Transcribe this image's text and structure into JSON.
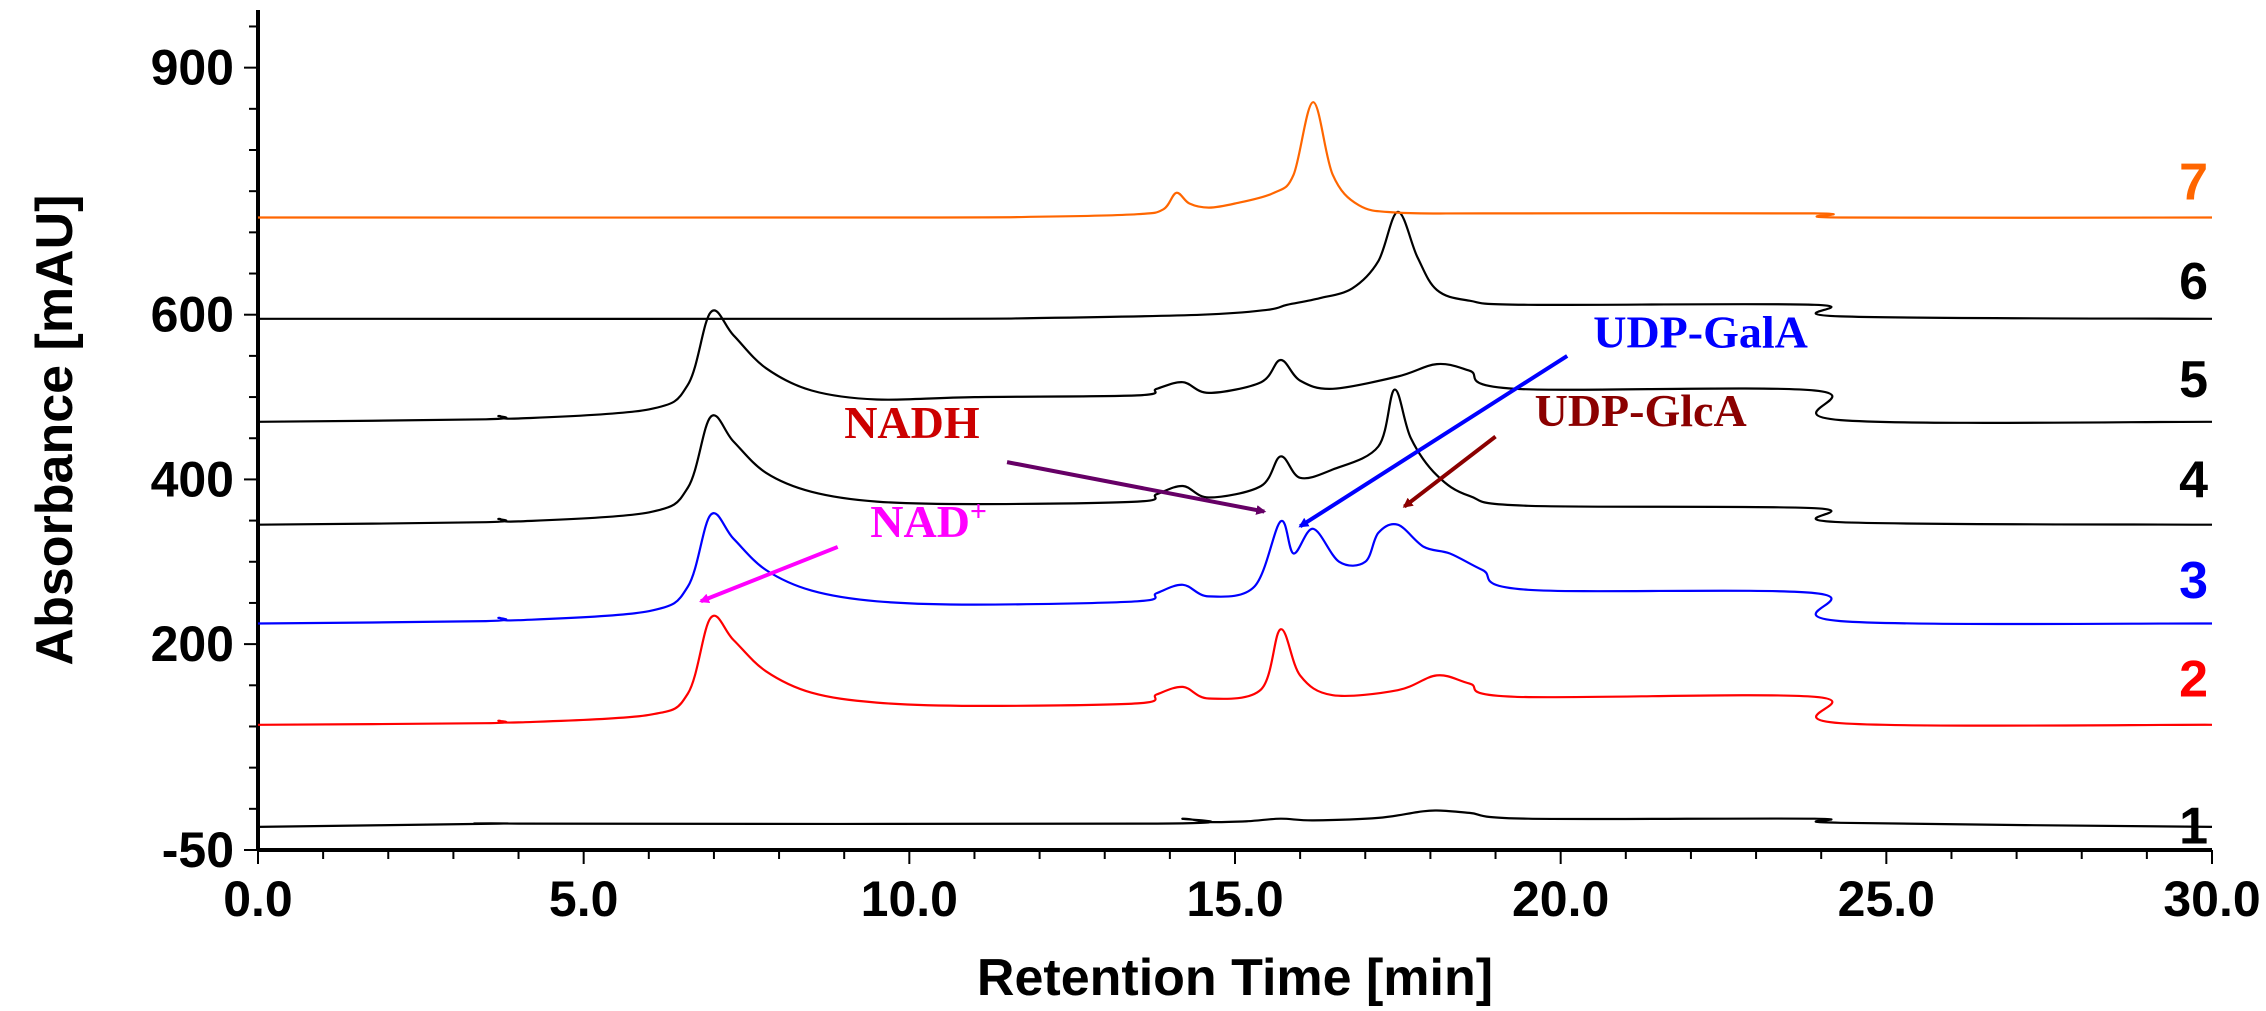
{
  "chart_data": {
    "type": "line",
    "title": "",
    "xlabel": "Retention Time [min]",
    "ylabel": "Absorbance [mAU]",
    "xlim": [
      0,
      30
    ],
    "ylim": [
      -50,
      970
    ],
    "x_ticks": [
      {
        "value": 0,
        "label": "0.0"
      },
      {
        "value": 5,
        "label": "5.0"
      },
      {
        "value": 10,
        "label": "10.0"
      },
      {
        "value": 15,
        "label": "15.0"
      },
      {
        "value": 20,
        "label": "20.0"
      },
      {
        "value": 25,
        "label": "25.0"
      },
      {
        "value": 30,
        "label": "30.0"
      }
    ],
    "y_ticks": [
      {
        "value": -50,
        "label": "-50"
      },
      {
        "value": 200,
        "label": "200"
      },
      {
        "value": 400,
        "label": "400"
      },
      {
        "value": 600,
        "label": "600"
      },
      {
        "value": 900,
        "label": "900"
      }
    ],
    "series": [
      {
        "name": "1",
        "color": "#000000",
        "x": [
          0,
          3.7,
          4,
          13.8,
          14.2,
          14.6,
          15.2,
          15.7,
          16.2,
          17.2,
          17.8,
          18.1,
          18.6,
          19.5,
          23.9,
          24.3,
          30
        ],
        "y": [
          -22,
          -18,
          -18,
          -18,
          -12,
          -16,
          -15,
          -12,
          -14,
          -11,
          -4,
          -2,
          -5,
          -12,
          -12,
          -17,
          -22
        ]
      },
      {
        "name": "2",
        "color": "#ff0000",
        "x": [
          0,
          3.5,
          3.7,
          4,
          6,
          6.6,
          6.95,
          7.3,
          7.8,
          8.5,
          9.5,
          11,
          13.5,
          13.8,
          14.2,
          14.6,
          15.4,
          15.7,
          16.0,
          16.5,
          17.5,
          18.1,
          18.6,
          19.3,
          23.9,
          24.3,
          30
        ],
        "y": [
          102,
          104,
          107,
          105,
          114,
          140,
          232,
          205,
          167,
          141,
          129,
          125,
          128,
          139,
          148,
          134,
          145,
          218,
          162,
          138,
          144,
          162,
          152,
          136,
          136,
          104,
          102
        ]
      },
      {
        "name": "3",
        "color": "#0000ff",
        "x": [
          0,
          3.5,
          3.7,
          4,
          6,
          6.6,
          6.95,
          7.3,
          7.8,
          8.5,
          9.5,
          11,
          13.5,
          13.8,
          14.2,
          14.6,
          15.3,
          15.7,
          15.9,
          16.2,
          16.6,
          17.0,
          17.2,
          17.5,
          17.9,
          18.3,
          18.8,
          19.5,
          23.9,
          24.3,
          30
        ],
        "y": [
          225,
          228,
          232,
          229,
          240,
          270,
          357,
          328,
          290,
          265,
          252,
          248,
          252,
          262,
          272,
          258,
          270,
          349,
          310,
          340,
          300,
          300,
          335,
          345,
          318,
          310,
          290,
          266,
          262,
          228,
          225
        ]
      },
      {
        "name": "4",
        "color": "#000000",
        "x": [
          0,
          3.5,
          3.7,
          4,
          6,
          6.6,
          6.95,
          7.3,
          7.8,
          8.5,
          9.5,
          11,
          13.5,
          13.8,
          14.2,
          14.6,
          15.4,
          15.7,
          16.0,
          16.5,
          17.2,
          17.45,
          17.7,
          18.1,
          18.6,
          19.5,
          23.9,
          24.3,
          30
        ],
        "y": [
          345,
          348,
          352,
          349,
          360,
          390,
          476,
          446,
          408,
          385,
          373,
          370,
          373,
          382,
          392,
          378,
          392,
          428,
          402,
          412,
          440,
          509,
          450,
          405,
          380,
          368,
          365,
          348,
          345
        ]
      },
      {
        "name": "5",
        "color": "#000000",
        "x": [
          0,
          3.5,
          3.7,
          4,
          6,
          6.6,
          6.95,
          7.3,
          7.8,
          8.5,
          9.5,
          11,
          13.5,
          13.8,
          14.2,
          14.6,
          15.4,
          15.7,
          16.0,
          16.5,
          17.5,
          18.1,
          18.6,
          19.3,
          23.9,
          24.3,
          30
        ],
        "y": [
          470,
          473,
          477,
          474,
          485,
          515,
          603,
          575,
          535,
          508,
          497,
          500,
          502,
          510,
          518,
          505,
          518,
          545,
          520,
          510,
          525,
          540,
          532,
          510,
          508,
          472,
          470
        ]
      },
      {
        "name": "6",
        "color": "#000000",
        "x": [
          0,
          10,
          12,
          14.5,
          15.5,
          15.8,
          16.3,
          16.8,
          17.2,
          17.5,
          17.8,
          18.1,
          18.6,
          19.5,
          23.9,
          24.3,
          30
        ],
        "y": [
          595,
          595,
          596,
          600,
          606,
          612,
          620,
          632,
          665,
          725,
          670,
          630,
          617,
          612,
          612,
          598,
          595
        ]
      },
      {
        "name": "7",
        "color": "#ff6600",
        "x": [
          0,
          10,
          12,
          13.5,
          13.9,
          14.1,
          14.3,
          14.6,
          15,
          15.6,
          15.9,
          16.2,
          16.5,
          16.9,
          17.5,
          19,
          23.9,
          24.3,
          30
        ],
        "y": [
          718,
          718,
          719,
          722,
          728,
          748,
          735,
          730,
          735,
          748,
          770,
          858,
          770,
          733,
          724,
          723,
          723,
          718,
          718
        ]
      }
    ],
    "trace_labels": [
      {
        "text": "1",
        "color": "#000000",
        "y": -20
      },
      {
        "text": "2",
        "color": "#ff0000",
        "y": 158
      },
      {
        "text": "3",
        "color": "#0000ff",
        "y": 278
      },
      {
        "text": "4",
        "color": "#000000",
        "y": 400
      },
      {
        "text": "5",
        "color": "#000000",
        "y": 522
      },
      {
        "text": "6",
        "color": "#000000",
        "y": 641
      },
      {
        "text": "7",
        "color": "#ff6600",
        "y": 762
      }
    ],
    "annotations": [
      {
        "text": "UDP-GalA",
        "color": "#0000ff",
        "text_x": 20.5,
        "text_y": 560,
        "arrow_from": [
          20.1,
          550
        ],
        "arrow_to": [
          16.0,
          343
        ]
      },
      {
        "text": "UDP-GlcA",
        "color": "#8b0000",
        "text_x": 19.6,
        "text_y": 465,
        "arrow_from": [
          19.0,
          452
        ],
        "arrow_to": [
          17.6,
          367
        ]
      },
      {
        "text": "NADH",
        "color": "#cc0000",
        "text_x": 9.0,
        "text_y": 450,
        "arrow_from": [
          11.5,
          421
        ],
        "arrow_to": [
          15.45,
          361
        ]
      },
      {
        "text": "NAD",
        "sup": "+",
        "color": "#ff00ff",
        "text_x": 9.4,
        "text_y": 330,
        "arrow_from": [
          8.9,
          318
        ],
        "arrow_to": [
          6.8,
          252
        ]
      }
    ]
  }
}
